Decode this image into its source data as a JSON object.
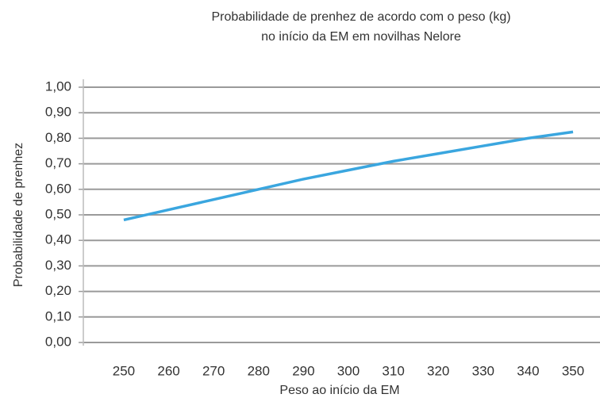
{
  "chart_data": {
    "type": "line",
    "title": [
      "Probabilidade de prenhez de acordo com o peso (kg)",
      "no início da EM em novilhas Nelore"
    ],
    "xlabel": "Peso ao início da EM",
    "ylabel": "Probabilidade de prenhez",
    "x": [
      250,
      260,
      270,
      280,
      290,
      300,
      310,
      320,
      330,
      340,
      350
    ],
    "series": [
      {
        "name": "Probabilidade de prenhez",
        "color": "#3aa6df",
        "values": [
          0.48,
          0.52,
          0.56,
          0.6,
          0.64,
          0.675,
          0.71,
          0.74,
          0.77,
          0.8,
          0.825
        ]
      }
    ],
    "xlim": [
      241,
      356
    ],
    "xticks": [
      250,
      260,
      270,
      280,
      290,
      300,
      310,
      320,
      330,
      340,
      350
    ],
    "ylim": [
      0,
      1
    ],
    "yticks": [
      {
        "value": 0,
        "label": "0,00"
      },
      {
        "value": 0.1,
        "label": "0,10"
      },
      {
        "value": 0.2,
        "label": "0,20"
      },
      {
        "value": 0.3,
        "label": "0,30"
      },
      {
        "value": 0.4,
        "label": "0,40"
      },
      {
        "value": 0.5,
        "label": "0,50"
      },
      {
        "value": 0.6,
        "label": "0,60"
      },
      {
        "value": 0.7,
        "label": "0,70"
      },
      {
        "value": 0.8,
        "label": "0,80"
      },
      {
        "value": 0.9,
        "label": "0,90"
      },
      {
        "value": 1,
        "label": "1,00"
      }
    ],
    "grid": true
  }
}
